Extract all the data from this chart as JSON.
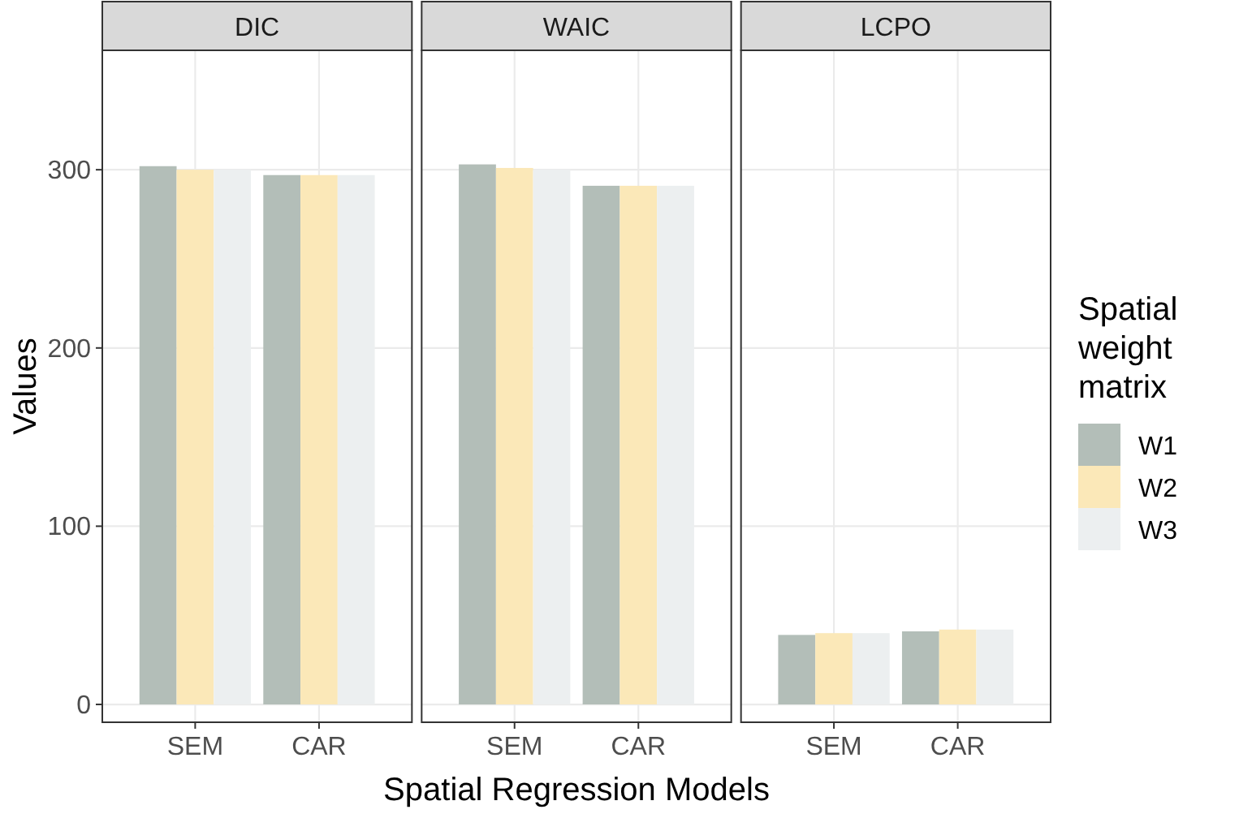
{
  "chart_data": [
    {
      "type": "bar",
      "title": "DIC",
      "ylabel": "Values",
      "categories": [
        "SEM",
        "CAR"
      ],
      "ylim": [
        -10,
        367
      ],
      "yticks": [
        0,
        100,
        200,
        300
      ],
      "grid": true,
      "series": [
        {
          "color": "#b3beb8",
          "values": [
            302,
            297
          ]
        },
        {
          "color": "#fbe8b8",
          "values": [
            300,
            297
          ]
        },
        {
          "color": "#eceff0",
          "values": [
            300,
            297
          ]
        }
      ]
    },
    {
      "type": "bar",
      "title": "WAIC",
      "xlabel": "Spatial Regression Models",
      "categories": [
        "SEM",
        "CAR"
      ],
      "ylim": [
        -10,
        367
      ],
      "yticks": [
        0,
        100,
        200,
        300
      ],
      "grid": true,
      "tick_labels": "x",
      "series": [
        {
          "color": "#b3beb8",
          "values": [
            303,
            291
          ]
        },
        {
          "color": "#fbe8b8",
          "values": [
            301,
            291
          ]
        },
        {
          "color": "#eceff0",
          "values": [
            300,
            291
          ]
        }
      ]
    },
    {
      "type": "bar",
      "title": "LCPO",
      "legend_title": "Spatial weight matrix",
      "legend": "right",
      "categories": [
        "SEM",
        "CAR"
      ],
      "ylim": [
        -10,
        367
      ],
      "yticks": [
        0,
        100,
        200,
        300
      ],
      "grid": true,
      "tick_labels": "x",
      "series": [
        {
          "name": "W1",
          "color": "#b3beb8",
          "values": [
            39,
            41
          ]
        },
        {
          "name": "W2",
          "color": "#fbe8b8",
          "values": [
            40,
            42
          ]
        },
        {
          "name": "W3",
          "color": "#eceff0",
          "values": [
            40,
            42
          ]
        }
      ]
    }
  ]
}
